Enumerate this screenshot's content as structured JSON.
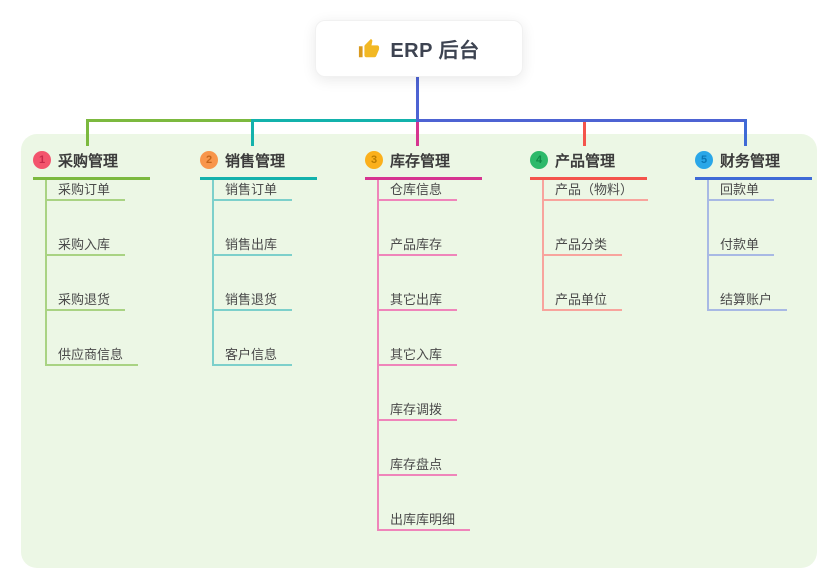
{
  "root": {
    "title": "ERP 后台",
    "icon": "thumbs-up-icon"
  },
  "colors": {
    "page_bg": "#ffffff",
    "panel_bg": "#ecf7e5",
    "stem_line": "#4d63d3",
    "root_text": "#3d4351",
    "header_text": "#3b3b3b",
    "child_text": "#4a4a4a",
    "thumb_hand": "#f2b824",
    "thumb_cuff": "#d99a1e"
  },
  "branches": [
    {
      "index": "1",
      "label": "采购管理",
      "badge_bg": "#f3546d",
      "badge_digit": "#c6284a",
      "line": "#7cb93f",
      "line_tint": "#a9d383",
      "children": [
        "采购订单",
        "采购入库",
        "采购退货",
        "供应商信息"
      ]
    },
    {
      "index": "2",
      "label": "销售管理",
      "badge_bg": "#f8964b",
      "badge_digit": "#c4651a",
      "line": "#13b2ac",
      "line_tint": "#7dd0cb",
      "children": [
        "销售订单",
        "销售出库",
        "销售退货",
        "客户信息"
      ]
    },
    {
      "index": "3",
      "label": "库存管理",
      "badge_bg": "#fbb01b",
      "badge_digit": "#b97c00",
      "line": "#d63490",
      "line_tint": "#ef85ba",
      "children": [
        "仓库信息",
        "产品库存",
        "其它出库",
        "其它入库",
        "库存调拨",
        "库存盘点",
        "出库库明细"
      ]
    },
    {
      "index": "4",
      "label": "产品管理",
      "badge_bg": "#2db96a",
      "badge_digit": "#0f8a47",
      "line": "#f4544c",
      "line_tint": "#f8a49d",
      "children": [
        "产品（物料）",
        "产品分类",
        "产品单位"
      ]
    },
    {
      "index": "5",
      "label": "财务管理",
      "badge_bg": "#2aa7e8",
      "badge_digit": "#0b77b5",
      "line": "#3f6ad6",
      "line_tint": "#a8b9e4",
      "children": [
        "回款单",
        "付款单",
        "结算账户"
      ]
    }
  ]
}
